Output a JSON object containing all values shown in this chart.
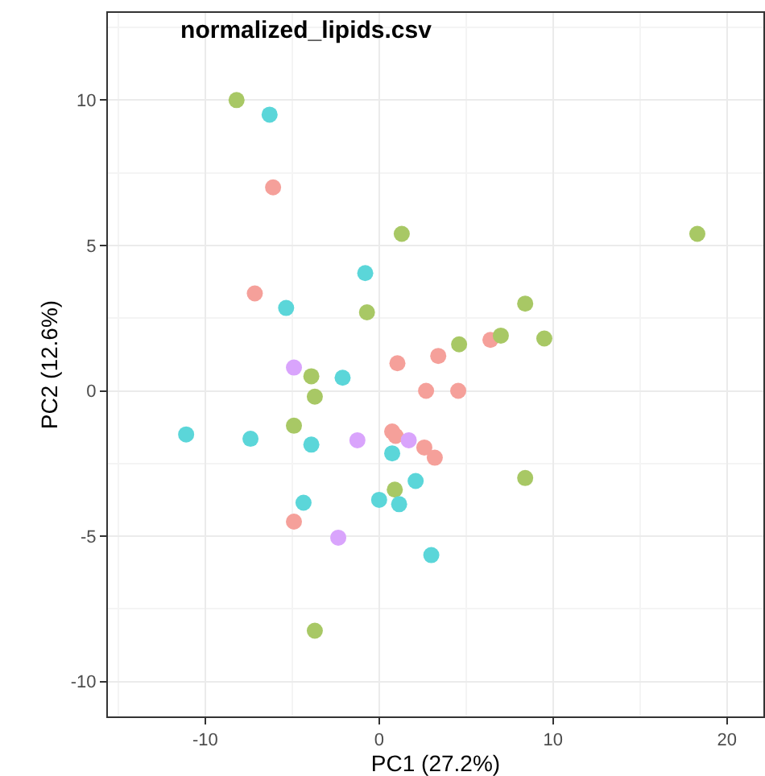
{
  "chart_data": {
    "type": "scatter",
    "title": "normalized_lipids.csv",
    "xlabel": "PC1 (27.2%)",
    "ylabel": "PC2 (12.6%)",
    "xlim": [
      -15.6,
      22.1
    ],
    "ylim": [
      -11.2,
      13.0
    ],
    "xticks": [
      -10,
      0,
      10,
      20
    ],
    "yticks": [
      -10,
      -5,
      0,
      5,
      10
    ],
    "grid": true,
    "marker": "circle",
    "series": [
      {
        "color": "#f5a09a",
        "x": [
          -6.1,
          -7.15,
          6.4,
          3.4,
          1.05,
          2.7,
          4.55,
          0.75,
          0.95,
          2.6,
          3.2,
          -4.9
        ],
        "values": [
          7,
          3.35,
          1.75,
          1.2,
          0.95,
          0,
          0,
          -1.4,
          -1.55,
          -1.95,
          -2.3,
          -4.5
        ]
      },
      {
        "color": "#a8c865",
        "x": [
          -8.2,
          1.3,
          18.3,
          8.4,
          4.6,
          7,
          9.5,
          -0.7,
          -3.9,
          -3.7,
          -4.9,
          0.9,
          8.4,
          -3.7
        ],
        "values": [
          10,
          5.4,
          5.4,
          3,
          1.6,
          1.9,
          1.8,
          2.7,
          0.5,
          -0.2,
          -1.2,
          -3.4,
          -3,
          -8.25
        ]
      },
      {
        "color": "#5bd6d9",
        "x": [
          -6.3,
          -0.8,
          -5.35,
          -2.1,
          -11.1,
          -7.4,
          -3.9,
          0.75,
          2.1,
          1.15,
          0,
          -4.35,
          3
        ],
        "values": [
          9.5,
          4.05,
          2.85,
          0.45,
          -1.5,
          -1.65,
          -1.85,
          -2.15,
          -3.1,
          -3.9,
          -3.75,
          -3.85,
          -5.65
        ]
      },
      {
        "color": "#d9a4fc",
        "x": [
          -4.9,
          -1.25,
          1.7,
          -2.35
        ],
        "values": [
          0.8,
          -1.7,
          -1.7,
          -5.05
        ]
      }
    ]
  }
}
